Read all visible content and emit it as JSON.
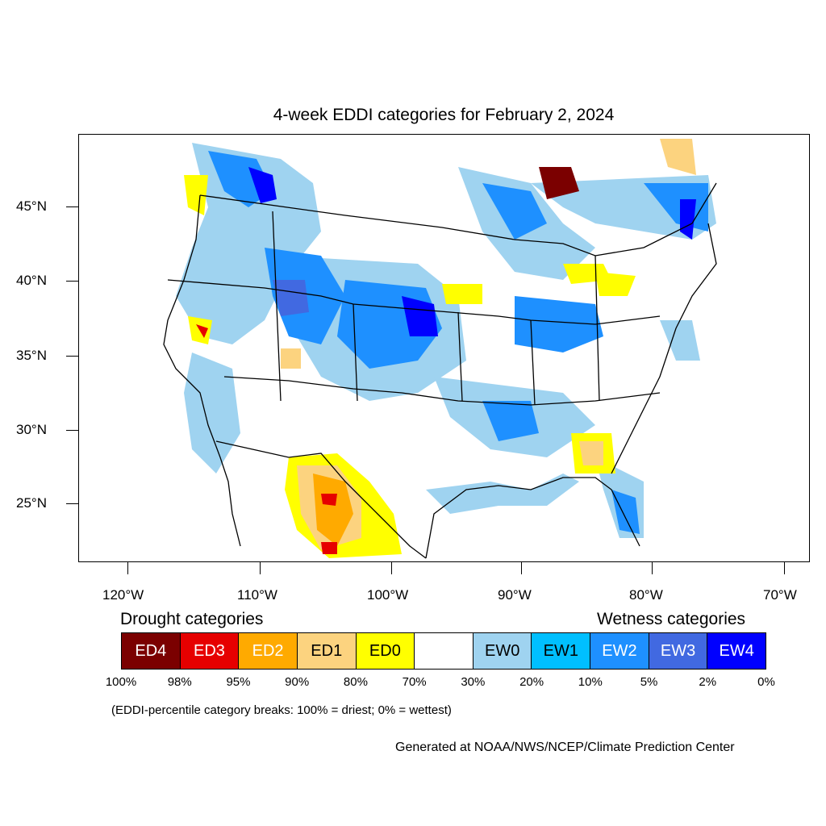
{
  "title": "4-week EDDI categories for February 2, 2024",
  "lat_labels": [
    "45°N",
    "40°N",
    "35°N",
    "30°N",
    "25°N"
  ],
  "lon_labels": [
    "120°W",
    "110°W",
    "100°W",
    "90°W",
    "80°W",
    "70°W"
  ],
  "legend": {
    "drought_header": "Drought categories",
    "wetness_header": "Wetness categories",
    "categories": [
      {
        "label": "ED4",
        "color": "#7b0000",
        "text_color": "#ffffff"
      },
      {
        "label": "ED3",
        "color": "#e60000",
        "text_color": "#ffffff"
      },
      {
        "label": "ED2",
        "color": "#ffaa00",
        "text_color": "#ffffff"
      },
      {
        "label": "ED1",
        "color": "#fcd37f",
        "text_color": "#000000"
      },
      {
        "label": "ED0",
        "color": "#ffff00",
        "text_color": "#000000"
      },
      {
        "label": "",
        "color": "#ffffff",
        "text_color": "#000000"
      },
      {
        "label": "EW0",
        "color": "#9fd3f0",
        "text_color": "#000000"
      },
      {
        "label": "EW1",
        "color": "#00bfff",
        "text_color": "#000000"
      },
      {
        "label": "EW2",
        "color": "#1e90ff",
        "text_color": "#ffffff"
      },
      {
        "label": "EW3",
        "color": "#4169e1",
        "text_color": "#ffffff"
      },
      {
        "label": "EW4",
        "color": "#0000ff",
        "text_color": "#ffffff"
      }
    ],
    "percent_breaks": [
      "100%",
      "98%",
      "95%",
      "90%",
      "80%",
      "70%",
      "30%",
      "20%",
      "10%",
      "5%",
      "2%",
      "0%"
    ]
  },
  "note": "(EDDI-percentile category breaks: 100% = driest; 0% = wettest)",
  "credit": "Generated at NOAA/NWS/NCEP/Climate Prediction Center"
}
